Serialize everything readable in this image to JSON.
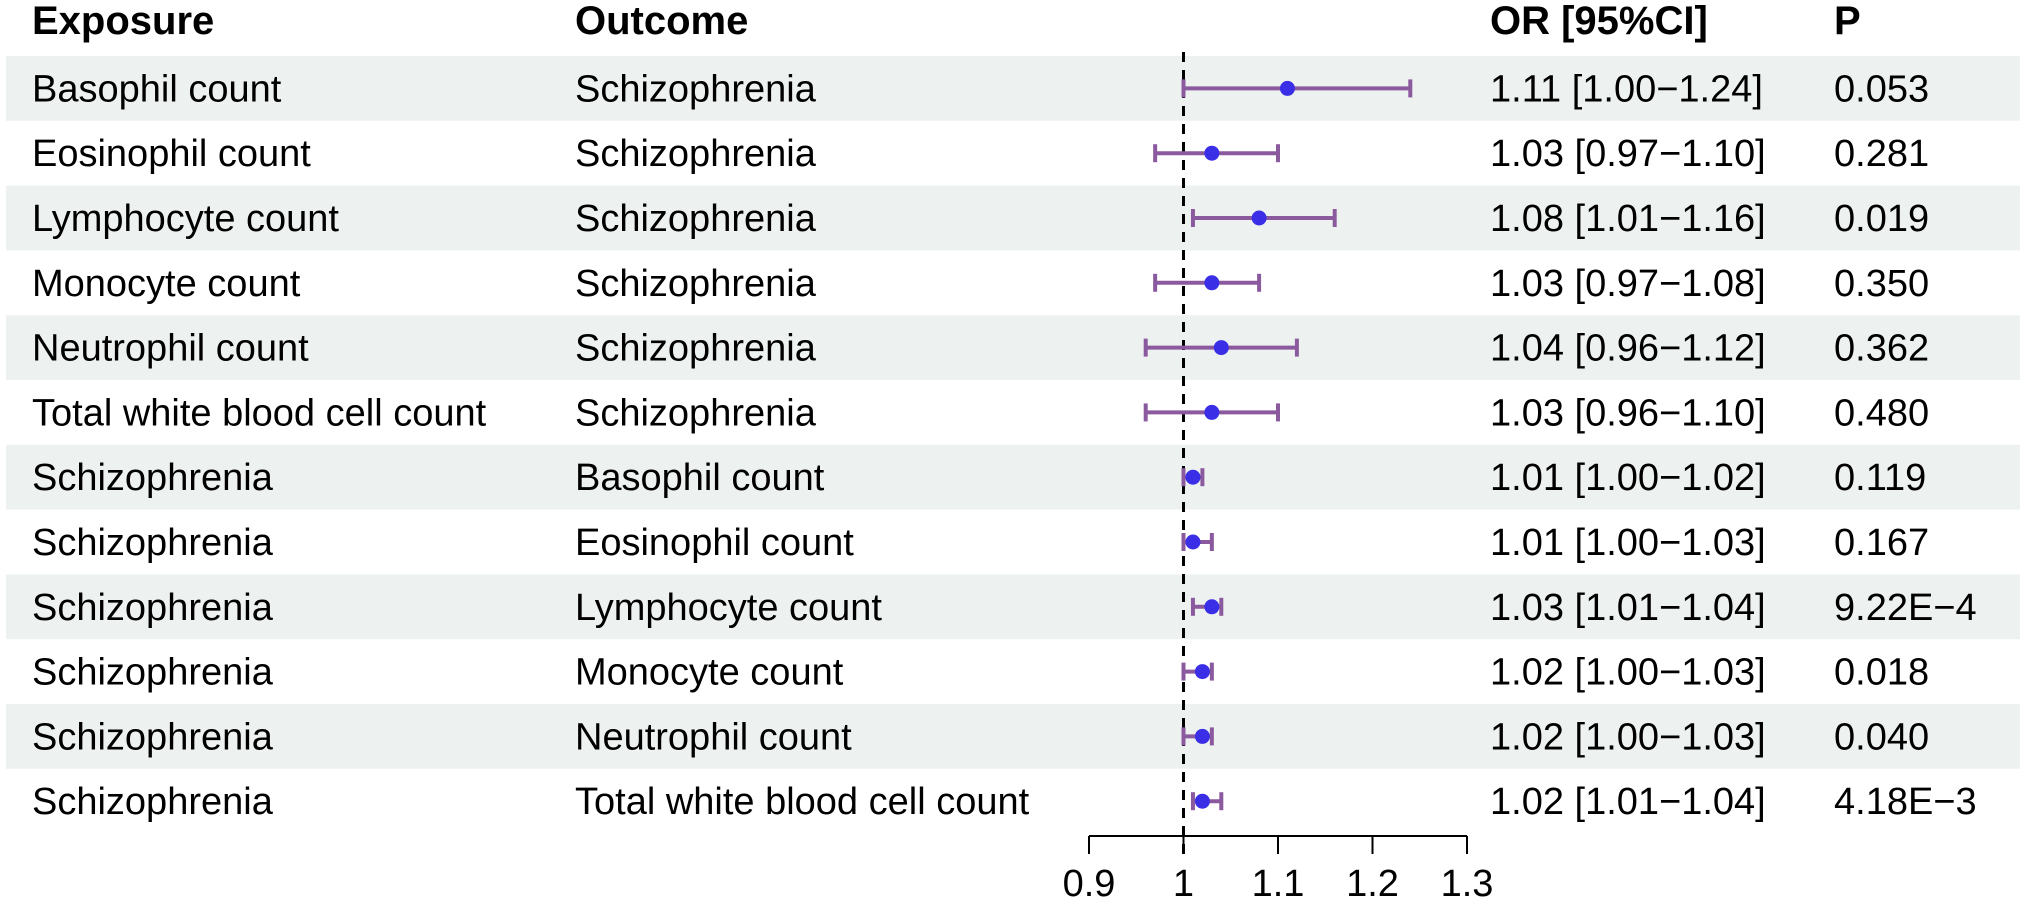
{
  "chart_data": {
    "type": "forest",
    "headers": {
      "exposure": "Exposure",
      "outcome": "Outcome",
      "or_ci": "OR [95%CI]",
      "p": "P"
    },
    "rows": [
      {
        "exposure": "Basophil count",
        "outcome": "Schizophrenia",
        "or": 1.11,
        "lower": 1.0,
        "upper": 1.24,
        "or_text": "1.11 [1.00−1.24]",
        "p": "0.053"
      },
      {
        "exposure": "Eosinophil count",
        "outcome": "Schizophrenia",
        "or": 1.03,
        "lower": 0.97,
        "upper": 1.1,
        "or_text": "1.03 [0.97−1.10]",
        "p": "0.281"
      },
      {
        "exposure": "Lymphocyte count",
        "outcome": "Schizophrenia",
        "or": 1.08,
        "lower": 1.01,
        "upper": 1.16,
        "or_text": "1.08 [1.01−1.16]",
        "p": "0.019"
      },
      {
        "exposure": "Monocyte count",
        "outcome": "Schizophrenia",
        "or": 1.03,
        "lower": 0.97,
        "upper": 1.08,
        "or_text": "1.03 [0.97−1.08]",
        "p": "0.350"
      },
      {
        "exposure": "Neutrophil count",
        "outcome": "Schizophrenia",
        "or": 1.04,
        "lower": 0.96,
        "upper": 1.12,
        "or_text": "1.04 [0.96−1.12]",
        "p": "0.362"
      },
      {
        "exposure": "Total white blood cell count",
        "outcome": "Schizophrenia",
        "or": 1.03,
        "lower": 0.96,
        "upper": 1.1,
        "or_text": "1.03 [0.96−1.10]",
        "p": "0.480"
      },
      {
        "exposure": "Schizophrenia",
        "outcome": "Basophil count",
        "or": 1.01,
        "lower": 1.0,
        "upper": 1.02,
        "or_text": "1.01 [1.00−1.02]",
        "p": "0.119"
      },
      {
        "exposure": "Schizophrenia",
        "outcome": "Eosinophil count",
        "or": 1.01,
        "lower": 1.0,
        "upper": 1.03,
        "or_text": "1.01 [1.00−1.03]",
        "p": "0.167"
      },
      {
        "exposure": "Schizophrenia",
        "outcome": "Lymphocyte count",
        "or": 1.03,
        "lower": 1.01,
        "upper": 1.04,
        "or_text": "1.03 [1.01−1.04]",
        "p": "9.22E−4"
      },
      {
        "exposure": "Schizophrenia",
        "outcome": "Monocyte count",
        "or": 1.02,
        "lower": 1.0,
        "upper": 1.03,
        "or_text": "1.02 [1.00−1.03]",
        "p": "0.018"
      },
      {
        "exposure": "Schizophrenia",
        "outcome": "Neutrophil count",
        "or": 1.02,
        "lower": 1.0,
        "upper": 1.03,
        "or_text": "1.02 [1.00−1.03]",
        "p": "0.040"
      },
      {
        "exposure": "Schizophrenia",
        "outcome": "Total white blood cell count",
        "or": 1.02,
        "lower": 1.01,
        "upper": 1.04,
        "or_text": "1.02 [1.01−1.04]",
        "p": "4.18E−3"
      }
    ],
    "xlim": [
      0.9,
      1.3
    ],
    "ticks": [
      0.9,
      1,
      1.1,
      1.2,
      1.3
    ],
    "tick_labels": [
      "0.9",
      "1",
      "1.1",
      "1.2",
      "1.3"
    ],
    "reference_line": 1,
    "colors": {
      "band": "#edf2f0",
      "ci_line": "#8b5a9e",
      "point": "#3a2ee6",
      "text": "#000000"
    }
  }
}
